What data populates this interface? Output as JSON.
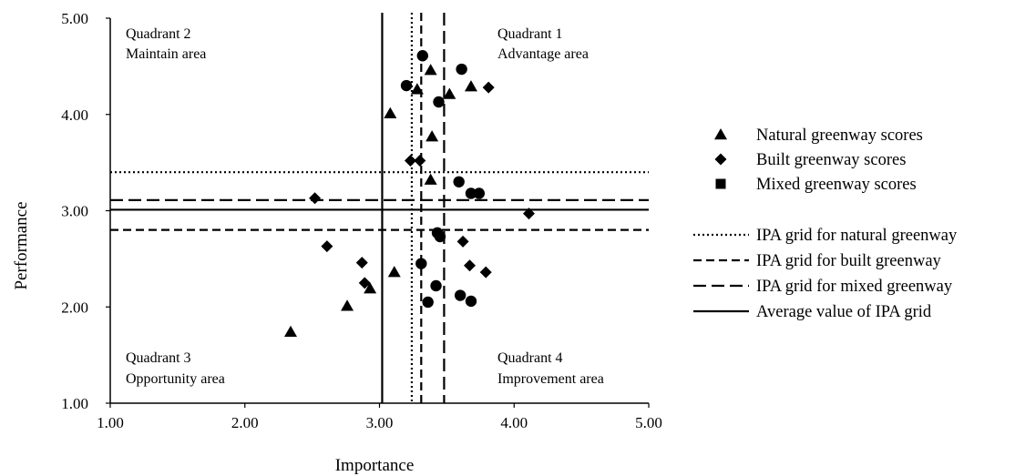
{
  "chart_data": {
    "type": "scatter",
    "xlabel": "Importance",
    "ylabel": "Performance",
    "xlim": [
      1.0,
      5.0
    ],
    "ylim": [
      1.0,
      5.0
    ],
    "x_ticks": [
      "1.00",
      "2.00",
      "3.00",
      "4.00",
      "5.00"
    ],
    "y_ticks": [
      "1.00",
      "2.00",
      "3.00",
      "4.00",
      "5.00"
    ],
    "grid": false,
    "legend_position": "right",
    "quadrants": [
      {
        "title": "Quadrant 1",
        "subtitle": "Advantage area"
      },
      {
        "title": "Quadrant 2",
        "subtitle": "Maintain area"
      },
      {
        "title": "Quadrant 3",
        "subtitle": "Opportunity area"
      },
      {
        "title": "Quadrant 4",
        "subtitle": "Improvement area"
      }
    ],
    "series": [
      {
        "name": "Natural greenway scores",
        "marker": "triangle",
        "points": [
          [
            3.08,
            4.01
          ],
          [
            3.28,
            4.26
          ],
          [
            3.38,
            4.46
          ],
          [
            3.52,
            4.21
          ],
          [
            3.68,
            4.29
          ],
          [
            3.39,
            3.77
          ],
          [
            3.38,
            3.32
          ],
          [
            3.11,
            2.36
          ],
          [
            2.93,
            2.19
          ],
          [
            2.76,
            2.01
          ],
          [
            2.34,
            1.74
          ]
        ]
      },
      {
        "name": "Built greenway scores",
        "marker": "diamond",
        "points": [
          [
            3.81,
            4.28
          ],
          [
            3.23,
            3.52
          ],
          [
            3.3,
            3.52
          ],
          [
            2.52,
            3.13
          ],
          [
            4.11,
            2.97
          ],
          [
            2.61,
            2.63
          ],
          [
            3.62,
            2.68
          ],
          [
            2.87,
            2.46
          ],
          [
            3.67,
            2.43
          ],
          [
            3.79,
            2.36
          ],
          [
            2.89,
            2.25
          ]
        ]
      },
      {
        "name": "Mixed greenway scores",
        "marker": "square",
        "points": []
      },
      {
        "name": "",
        "marker": "circle",
        "points": [
          [
            3.32,
            4.61
          ],
          [
            3.61,
            4.47
          ],
          [
            3.2,
            4.3
          ],
          [
            3.44,
            4.13
          ],
          [
            3.59,
            3.3
          ],
          [
            3.68,
            3.18
          ],
          [
            3.74,
            3.18
          ],
          [
            3.43,
            2.77
          ],
          [
            3.45,
            2.73
          ],
          [
            3.31,
            2.45
          ],
          [
            3.42,
            2.22
          ],
          [
            3.36,
            2.05
          ],
          [
            3.6,
            2.12
          ],
          [
            3.68,
            2.06
          ]
        ]
      }
    ],
    "grid_lines": [
      {
        "name": "IPA grid for natural greenway",
        "style": "dotted",
        "x": 3.24,
        "y": 3.4
      },
      {
        "name": "IPA grid for built greenway",
        "style": "dashed-short",
        "x": 3.31,
        "y": 2.8
      },
      {
        "name": "IPA grid for mixed greenway",
        "style": "dashed-long",
        "x": 3.48,
        "y": 3.11
      },
      {
        "name": "Average value of IPA grid",
        "style": "solid",
        "x": 3.02,
        "y": 3.01
      }
    ]
  }
}
